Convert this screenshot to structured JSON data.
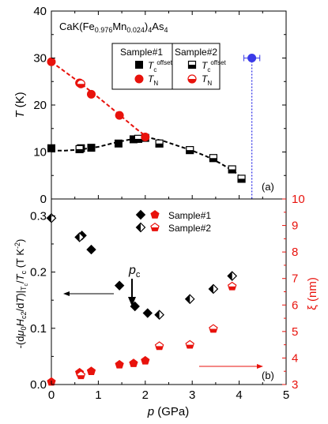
{
  "colors": {
    "black": "#000000",
    "red": "#e8120c",
    "blue": "#3a3ae8",
    "axis_right": "#e8120c"
  },
  "chart_data": [
    {
      "panel": "(a)",
      "type": "scatter",
      "title": "CaK(Fe0.976Mn0.024)4As4",
      "title_parts": {
        "base1": "CaK(Fe",
        "sub1": "0.976",
        "mid": "Mn",
        "sub2": "0.024",
        "base2": ")",
        "sub3": "4",
        "base3": "As",
        "sub4": "4"
      },
      "xlim": [
        0,
        5
      ],
      "ylim": [
        0,
        40
      ],
      "y_ticks": [
        0,
        10,
        20,
        30,
        40
      ],
      "ylabel": "T (K)",
      "ylabel_parts": {
        "italic": "T",
        "rest": " (K)"
      },
      "legend": {
        "placement": "top-right",
        "header1": "Sample#1",
        "header2": "Sample#2",
        "row1_label": "T",
        "row1_sub": "c",
        "row1_sup": "offset",
        "row2_label": "T",
        "row2_sub": "N"
      },
      "series": [
        {
          "key": "tc_s1",
          "marker": "square-filled",
          "color": "#000000",
          "x": [
            0.0,
            0.63,
            0.85,
            1.43,
            1.75,
            2.0
          ],
          "y": [
            10.8,
            10.8,
            10.9,
            11.8,
            12.7,
            13.0
          ]
        },
        {
          "key": "tc_s2",
          "marker": "square-half",
          "color": "#000000",
          "x": [
            0.6,
            1.85,
            2.3,
            2.95,
            3.45,
            3.85,
            4.05
          ],
          "y": [
            10.6,
            12.8,
            11.8,
            10.4,
            8.7,
            6.3,
            4.3
          ]
        },
        {
          "key": "tn_s1",
          "marker": "circle-filled",
          "color": "#e8120c",
          "x": [
            0.0,
            0.6,
            0.85,
            1.45,
            2.0
          ],
          "y": [
            29.2,
            24.7,
            22.3,
            17.8,
            13.2
          ]
        },
        {
          "key": "tn_s2",
          "marker": "circle-half",
          "color": "#e8120c",
          "x": [
            0.63
          ],
          "y": [
            24.5
          ]
        },
        {
          "key": "blue_point",
          "marker": "circle-filled",
          "color": "#3a3ae8",
          "x": [
            4.27
          ],
          "y": [
            30.0
          ],
          "xerr": 0.17
        }
      ],
      "fit_lines": [
        {
          "color": "#e8120c",
          "x": [
            0.0,
            0.3,
            0.6,
            0.9,
            1.2,
            1.5,
            1.8,
            2.1
          ],
          "y": [
            29.2,
            27.0,
            24.8,
            22.4,
            20.0,
            17.5,
            15.0,
            12.7
          ]
        },
        {
          "color": "#000000",
          "x": [
            0.0,
            0.3,
            0.6,
            1.0,
            1.4,
            1.8,
            2.1,
            2.4,
            2.7,
            3.0,
            3.3,
            3.6,
            3.9,
            4.1
          ],
          "y": [
            10.3,
            10.3,
            10.5,
            11.1,
            12.1,
            12.9,
            13.0,
            12.3,
            11.3,
            10.3,
            9.1,
            7.6,
            5.8,
            4.1
          ]
        }
      ],
      "vertical_line": {
        "x": 4.27,
        "color": "#3a3ae8"
      }
    },
    {
      "panel": "(b)",
      "type": "scatter",
      "xlim": [
        0,
        5
      ],
      "x_ticks": [
        0,
        1,
        2,
        3,
        4,
        5
      ],
      "xlabel": "p (GPa)",
      "xlabel_parts": {
        "italic": "p",
        "rest": " (GPa)"
      },
      "ylim_left": [
        0,
        0.33
      ],
      "y_ticks_left": [
        "0.0",
        "0.1",
        "0.2",
        "0.3"
      ],
      "ylabel_left": "-(dμ0Hc2/dT)|Tc/Tc (T K-2)",
      "ylim_right": [
        3,
        10
      ],
      "y_ticks_right": [
        3,
        4,
        5,
        6,
        7,
        8,
        9,
        10
      ],
      "ylabel_right": "ξ (nm)",
      "legend": {
        "placement": "top-right",
        "s1": "Sample#1",
        "s2": "Sample#2"
      },
      "annotation": {
        "text": "p",
        "sub": "c",
        "x": 2.05
      },
      "series": [
        {
          "key": "slope_s1",
          "axis": "left",
          "marker": "diamond-filled",
          "color": "#000000",
          "x": [
            0.65,
            0.85,
            1.45,
            1.78,
            2.05
          ],
          "y": [
            0.265,
            0.24,
            0.176,
            0.139,
            0.127
          ]
        },
        {
          "key": "slope_s2",
          "axis": "left",
          "marker": "diamond-half",
          "color": "#000000",
          "x": [
            0.0,
            0.6,
            2.3,
            2.95,
            3.45,
            3.85
          ],
          "y": [
            0.296,
            0.262,
            0.124,
            0.152,
            0.17,
            0.193
          ]
        },
        {
          "key": "xi_s1",
          "axis": "right",
          "marker": "pentagon-filled",
          "color": "#e8120c",
          "x": [
            0.0,
            0.6,
            0.85,
            1.45,
            1.75,
            2.0
          ],
          "y": [
            3.1,
            3.45,
            3.5,
            3.75,
            3.8,
            3.9
          ]
        },
        {
          "key": "xi_s2",
          "axis": "right",
          "marker": "pentagon-half",
          "color": "#e8120c",
          "x": [
            0.63,
            2.3,
            2.95,
            3.45,
            3.85
          ],
          "y": [
            3.35,
            4.45,
            4.5,
            5.1,
            6.7
          ]
        }
      ]
    }
  ]
}
